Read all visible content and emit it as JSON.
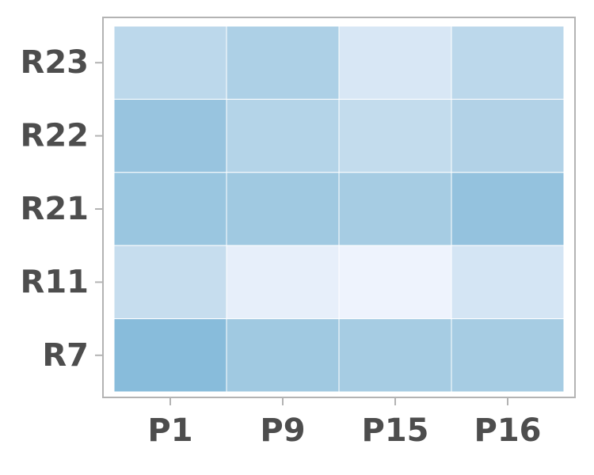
{
  "chart_data": {
    "type": "heatmap",
    "x_categories": [
      "P1",
      "P9",
      "P15",
      "P16"
    ],
    "y_categories": [
      "R23",
      "R22",
      "R21",
      "R11",
      "R7"
    ],
    "values": [
      [
        0.35,
        0.45,
        0.15,
        0.35
      ],
      [
        0.62,
        0.4,
        0.3,
        0.42
      ],
      [
        0.6,
        0.55,
        0.5,
        0.65
      ],
      [
        0.28,
        0.05,
        0.0,
        0.18
      ],
      [
        0.75,
        0.55,
        0.5,
        0.5
      ]
    ],
    "colormap": {
      "low": "#eef3fd",
      "mid": "#a6cce3",
      "high": "#6aacd3"
    },
    "title": "",
    "xlabel": "",
    "ylabel": "",
    "grid": true,
    "legend": "none"
  }
}
